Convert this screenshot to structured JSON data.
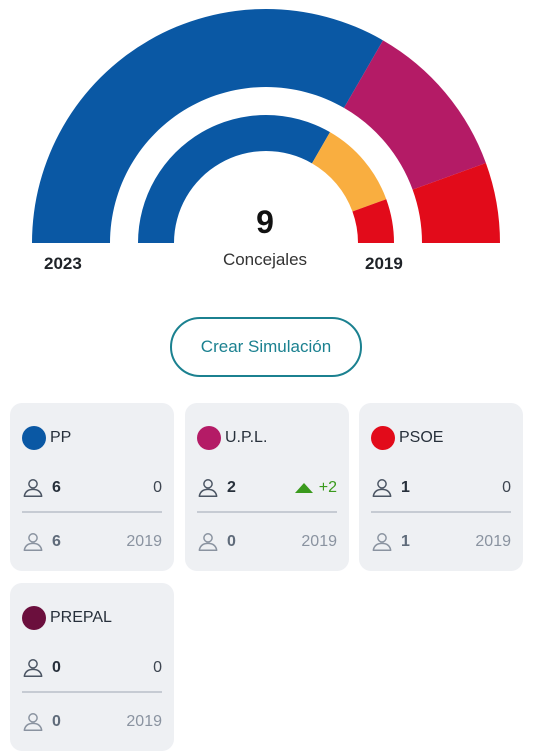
{
  "chart": {
    "label_outer_year": "2023",
    "label_inner_year": "2019",
    "total_seats": "9",
    "total_label": "Concejales",
    "outer_ring": [
      {
        "party": "PP",
        "seats": 6,
        "color": "#0a58a4"
      },
      {
        "party": "U.P.L.",
        "seats": 2,
        "color": "#b41b66"
      },
      {
        "party": "PSOE",
        "seats": 1,
        "color": "#e20b1a"
      }
    ],
    "inner_ring": [
      {
        "party": "PP",
        "seats": 6,
        "color": "#0a58a4"
      },
      {
        "party": "",
        "seats": 2,
        "color": "#f9ae40"
      },
      {
        "party": "PSOE",
        "seats": 1,
        "color": "#e20b1a"
      }
    ]
  },
  "simulate_button": "Crear Simulación",
  "cards": [
    {
      "name": "PP",
      "color": "#0a58a4",
      "seats": "6",
      "change": "0",
      "prev_seats": "6",
      "prev_year": "2019"
    },
    {
      "name": "U.P.L.",
      "color": "#b41b66",
      "seats": "2",
      "change": "+2",
      "prev_seats": "0",
      "prev_year": "2019"
    },
    {
      "name": "PSOE",
      "color": "#e20b1a",
      "seats": "1",
      "change": "0",
      "prev_seats": "1",
      "prev_year": "2019"
    },
    {
      "name": "PREPAL",
      "color": "#6b0f3d",
      "seats": "0",
      "change": "0",
      "prev_seats": "0",
      "prev_year": "2019"
    }
  ]
}
